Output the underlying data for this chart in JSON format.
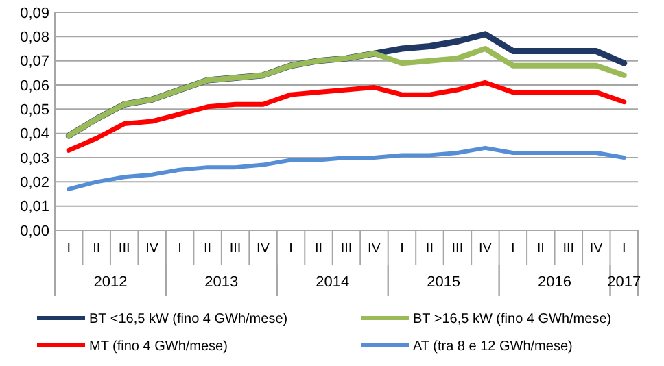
{
  "chart_data": {
    "type": "line",
    "categories": [
      "I",
      "II",
      "III",
      "IV",
      "I",
      "II",
      "III",
      "IV",
      "I",
      "II",
      "III",
      "IV",
      "I",
      "II",
      "III",
      "IV",
      "I",
      "II",
      "III",
      "IV",
      "I"
    ],
    "annotations": [
      "2012",
      "2013",
      "2014",
      "2015",
      "2016",
      "2017"
    ],
    "series": [
      {
        "name": "BT <16,5 kW (fino 4 GWh/mese)",
        "color": "#1f3864",
        "values": [
          0.039,
          0.046,
          0.052,
          0.054,
          0.058,
          0.062,
          0.063,
          0.064,
          0.068,
          0.07,
          0.071,
          0.073,
          0.075,
          0.076,
          0.078,
          0.081,
          0.074,
          0.074,
          0.074,
          0.074,
          0.069
        ]
      },
      {
        "name": "BT >16,5 kW (fino 4 GWh/mese)",
        "color": "#9bbb59",
        "values": [
          0.039,
          0.046,
          0.052,
          0.054,
          0.058,
          0.062,
          0.063,
          0.064,
          0.068,
          0.07,
          0.071,
          0.073,
          0.069,
          0.07,
          0.071,
          0.075,
          0.068,
          0.068,
          0.068,
          0.068,
          0.064
        ]
      },
      {
        "name": "MT (fino 4 GWh/mese)",
        "color": "#ff0000",
        "values": [
          0.033,
          0.038,
          0.044,
          0.045,
          0.048,
          0.051,
          0.052,
          0.052,
          0.056,
          0.057,
          0.058,
          0.059,
          0.056,
          0.056,
          0.058,
          0.061,
          0.057,
          0.057,
          0.057,
          0.057,
          0.053
        ]
      },
      {
        "name": "AT (tra 8 e 12 GWh/mese)",
        "color": "#558ed5",
        "values": [
          0.017,
          0.02,
          0.022,
          0.023,
          0.025,
          0.026,
          0.026,
          0.027,
          0.029,
          0.029,
          0.03,
          0.03,
          0.031,
          0.031,
          0.032,
          0.034,
          0.032,
          0.032,
          0.032,
          0.032,
          0.03
        ]
      }
    ],
    "ylim": [
      0,
      0.09
    ],
    "yticks": [
      {
        "value": 0,
        "label": "0,00"
      },
      {
        "value": 0.01,
        "label": "0,01"
      },
      {
        "value": 0.02,
        "label": "0,02"
      },
      {
        "value": 0.03,
        "label": "0,03"
      },
      {
        "value": 0.04,
        "label": "0,04"
      },
      {
        "value": 0.05,
        "label": "0,05"
      },
      {
        "value": 0.06,
        "label": "0,06"
      },
      {
        "value": 0.07,
        "label": "0,07"
      },
      {
        "value": 0.08,
        "label": "0,08"
      },
      {
        "value": 0.09,
        "label": "0,09"
      }
    ],
    "grid": "y",
    "legend": "bottom",
    "marker": "none",
    "line_style": "solid"
  }
}
